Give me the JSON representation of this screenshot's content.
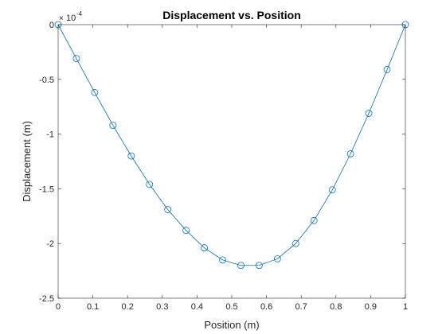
{
  "chart_data": {
    "type": "line",
    "title": "Displacement vs. Position",
    "xlabel": "Position (m)",
    "ylabel": "Displacement (m)",
    "exponent_label": "10",
    "exponent_power": "-4",
    "xlim": [
      0,
      1
    ],
    "ylim": [
      -2.5,
      0
    ],
    "xticks": [
      "0",
      "0.1",
      "0.2",
      "0.3",
      "0.4",
      "0.5",
      "0.6",
      "0.7",
      "0.8",
      "0.9",
      "1"
    ],
    "yticks": [
      "0",
      "-0.5",
      "-1",
      "-1.5",
      "-2",
      "-2.5"
    ],
    "grid": false,
    "marker": "circle",
    "colors": {
      "line": "#0072bd",
      "marker": "#0072bd",
      "axes": "#262626"
    },
    "series": [
      {
        "x": [
          0,
          0.0526,
          0.1053,
          0.1579,
          0.2105,
          0.2632,
          0.3158,
          0.3684,
          0.4211,
          0.4737,
          0.5263,
          0.5789,
          0.6316,
          0.6842,
          0.7368,
          0.7895,
          0.8421,
          0.8947,
          0.9474,
          1.0
        ],
        "y": [
          0,
          -0.31,
          -0.62,
          -0.92,
          -1.2,
          -1.46,
          -1.69,
          -1.88,
          -2.04,
          -2.15,
          -2.2,
          -2.2,
          -2.14,
          -2.0,
          -1.79,
          -1.51,
          -1.18,
          -0.81,
          -0.41,
          0
        ]
      }
    ]
  }
}
